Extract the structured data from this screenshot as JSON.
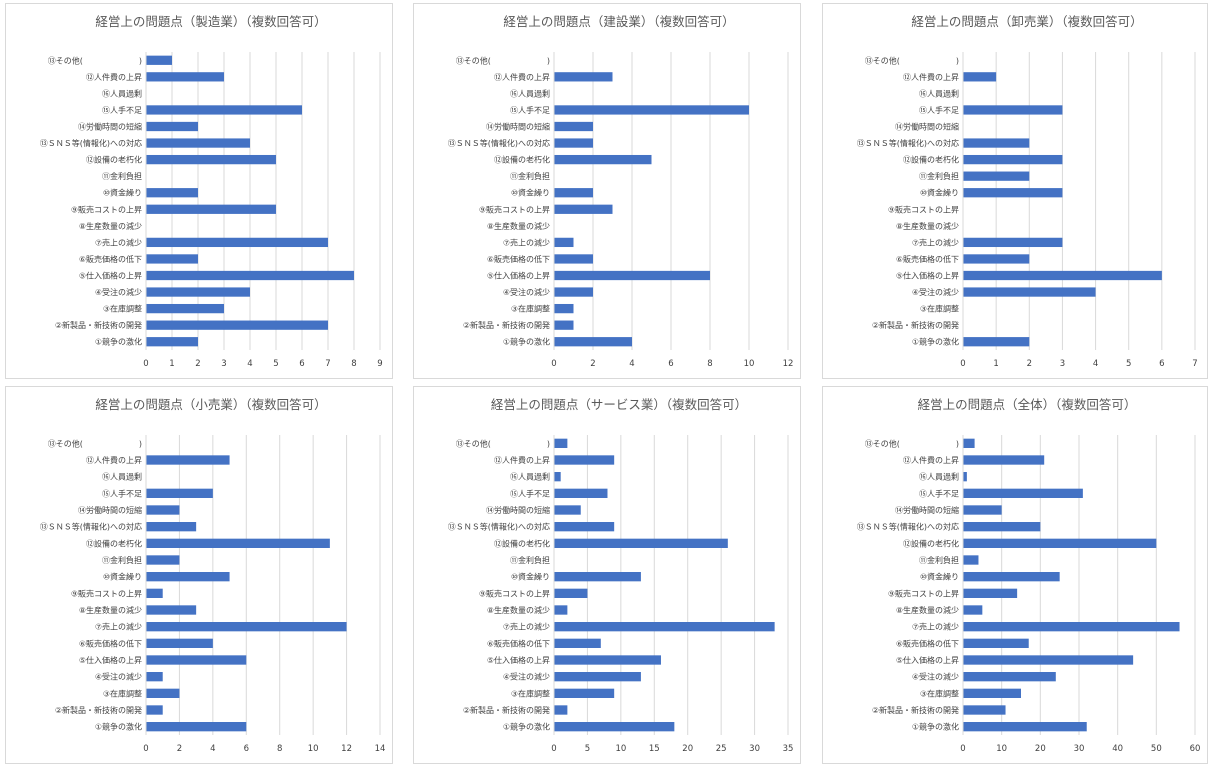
{
  "colors": {
    "bar": "#4472c4",
    "grid": "#d9d9d9",
    "text": "#404040",
    "title": "#595959"
  },
  "chart_data": [
    {
      "type": "bar",
      "orientation": "horizontal",
      "title": "経営上の問題点（製造業）（複数回答可）",
      "categories": [
        "⑬その他(　　　　　　　)",
        "⑫人件費の上昇",
        "⑯人員過剰",
        "⑮人手不足",
        "⑭労働時間の短縮",
        "⑬ＳＮＳ等(情報化)への対応",
        "⑫設備の老朽化",
        "⑪金利負担",
        "⑩資金繰り",
        "⑨販売コストの上昇",
        "⑧生産数量の減少",
        "⑦売上の減少",
        "⑥販売価格の低下",
        "⑤仕入価格の上昇",
        "④受注の減少",
        "③在庫調整",
        "②新製品・新技術の開発",
        "①競争の激化"
      ],
      "values": [
        1,
        3,
        0,
        6,
        2,
        4,
        5,
        0,
        2,
        5,
        0,
        7,
        2,
        8,
        4,
        3,
        7,
        2
      ],
      "xlim": [
        0,
        9
      ],
      "xticks": [
        0,
        1,
        2,
        3,
        4,
        5,
        6,
        7,
        8,
        9
      ],
      "grid": true,
      "legend": "none"
    },
    {
      "type": "bar",
      "orientation": "horizontal",
      "title": "経営上の問題点（建設業）（複数回答可）",
      "categories": [
        "⑬その他(　　　　　　　)",
        "⑫人件費の上昇",
        "⑯人員過剰",
        "⑮人手不足",
        "⑭労働時間の短縮",
        "⑬ＳＮＳ等(情報化)への対応",
        "⑫設備の老朽化",
        "⑪金利負担",
        "⑩資金繰り",
        "⑨販売コストの上昇",
        "⑧生産数量の減少",
        "⑦売上の減少",
        "⑥販売価格の低下",
        "⑤仕入価格の上昇",
        "④受注の減少",
        "③在庫調整",
        "②新製品・新技術の開発",
        "①競争の激化"
      ],
      "values": [
        0,
        3,
        0,
        10,
        2,
        2,
        5,
        0,
        2,
        3,
        0,
        1,
        2,
        8,
        2,
        1,
        1,
        4
      ],
      "xlim": [
        0,
        12
      ],
      "xticks": [
        0,
        2,
        4,
        6,
        8,
        10,
        12
      ],
      "grid": true,
      "legend": "none"
    },
    {
      "type": "bar",
      "orientation": "horizontal",
      "title": "経営上の問題点（卸売業）（複数回答可）",
      "categories": [
        "⑬その他(　　　　　　　)",
        "⑫人件費の上昇",
        "⑯人員過剰",
        "⑮人手不足",
        "⑭労働時間の短縮",
        "⑬ＳＮＳ等(情報化)への対応",
        "⑫設備の老朽化",
        "⑪金利負担",
        "⑩資金繰り",
        "⑨販売コストの上昇",
        "⑧生産数量の減少",
        "⑦売上の減少",
        "⑥販売価格の低下",
        "⑤仕入価格の上昇",
        "④受注の減少",
        "③在庫調整",
        "②新製品・新技術の開発",
        "①競争の激化"
      ],
      "values": [
        0,
        1,
        0,
        3,
        0,
        2,
        3,
        2,
        3,
        0,
        0,
        3,
        2,
        6,
        4,
        0,
        0,
        2
      ],
      "xlim": [
        0,
        7
      ],
      "xticks": [
        0,
        1,
        2,
        3,
        4,
        5,
        6,
        7
      ],
      "grid": true,
      "legend": "none"
    },
    {
      "type": "bar",
      "orientation": "horizontal",
      "title": "経営上の問題点（小売業）（複数回答可）",
      "categories": [
        "⑬その他(　　　　　　　)",
        "⑫人件費の上昇",
        "⑯人員過剰",
        "⑮人手不足",
        "⑭労働時間の短縮",
        "⑬ＳＮＳ等(情報化)への対応",
        "⑫設備の老朽化",
        "⑪金利負担",
        "⑩資金繰り",
        "⑨販売コストの上昇",
        "⑧生産数量の減少",
        "⑦売上の減少",
        "⑥販売価格の低下",
        "⑤仕入価格の上昇",
        "④受注の減少",
        "③在庫調整",
        "②新製品・新技術の開発",
        "①競争の激化"
      ],
      "values": [
        0,
        5,
        0,
        4,
        2,
        3,
        11,
        2,
        5,
        1,
        3,
        12,
        4,
        6,
        1,
        2,
        1,
        6
      ],
      "xlim": [
        0,
        14
      ],
      "xticks": [
        0,
        2,
        4,
        6,
        8,
        10,
        12,
        14
      ],
      "grid": true,
      "legend": "none"
    },
    {
      "type": "bar",
      "orientation": "horizontal",
      "title": "経営上の問題点（サービス業）（複数回答可）",
      "categories": [
        "⑬その他(　　　　　　　)",
        "⑫人件費の上昇",
        "⑯人員過剰",
        "⑮人手不足",
        "⑭労働時間の短縮",
        "⑬ＳＮＳ等(情報化)への対応",
        "⑫設備の老朽化",
        "⑪金利負担",
        "⑩資金繰り",
        "⑨販売コストの上昇",
        "⑧生産数量の減少",
        "⑦売上の減少",
        "⑥販売価格の低下",
        "⑤仕入価格の上昇",
        "④受注の減少",
        "③在庫調整",
        "②新製品・新技術の開発",
        "①競争の激化"
      ],
      "values": [
        2,
        9,
        1,
        8,
        4,
        9,
        26,
        0,
        13,
        5,
        2,
        33,
        7,
        16,
        13,
        9,
        2,
        18
      ],
      "xlim": [
        0,
        35
      ],
      "xticks": [
        0,
        5,
        10,
        15,
        20,
        25,
        30,
        35
      ],
      "grid": true,
      "legend": "none"
    },
    {
      "type": "bar",
      "orientation": "horizontal",
      "title": "経営上の問題点（全体）（複数回答可）",
      "categories": [
        "⑬その他(　　　　　　　)",
        "⑫人件費の上昇",
        "⑯人員過剰",
        "⑮人手不足",
        "⑭労働時間の短縮",
        "⑬ＳＮＳ等(情報化)への対応",
        "⑫設備の老朽化",
        "⑪金利負担",
        "⑩資金繰り",
        "⑨販売コストの上昇",
        "⑧生産数量の減少",
        "⑦売上の減少",
        "⑥販売価格の低下",
        "⑤仕入価格の上昇",
        "④受注の減少",
        "③在庫調整",
        "②新製品・新技術の開発",
        "①競争の激化"
      ],
      "values": [
        3,
        21,
        1,
        31,
        10,
        20,
        50,
        4,
        25,
        14,
        5,
        56,
        17,
        44,
        24,
        15,
        11,
        32
      ],
      "xlim": [
        0,
        60
      ],
      "xticks": [
        0,
        10,
        20,
        30,
        40,
        50,
        60
      ],
      "grid": true,
      "legend": "none"
    }
  ]
}
